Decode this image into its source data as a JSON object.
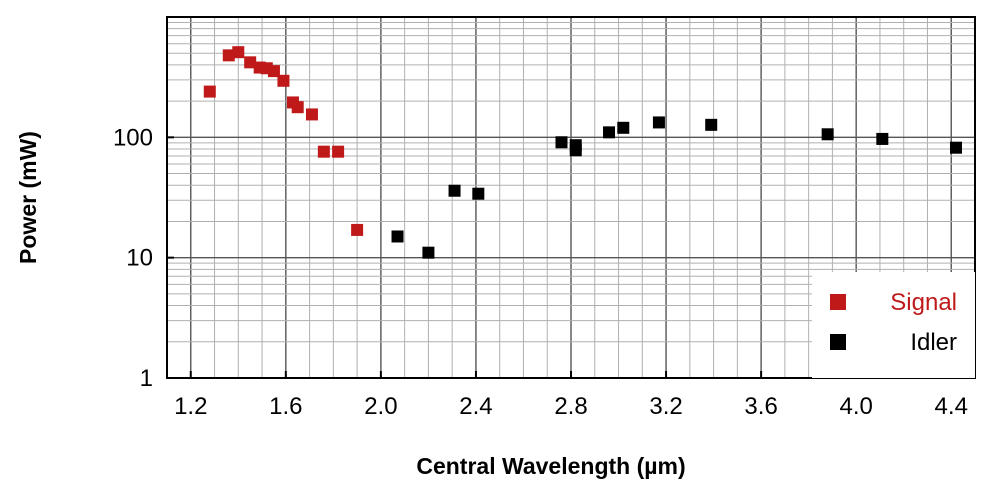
{
  "chart_data": {
    "type": "scatter",
    "xlabel": "Central Wavelength (µm)",
    "ylabel": "Power (mW)",
    "xlim": [
      1.1,
      4.5
    ],
    "ylim": [
      1,
      1000
    ],
    "y_scale": "log",
    "x_ticks": [
      "1.2",
      "1.6",
      "2.0",
      "2.4",
      "2.8",
      "3.2",
      "3.6",
      "4.0",
      "4.4"
    ],
    "y_ticks": [
      "1",
      "10",
      "100"
    ],
    "grid": true,
    "legend_position": "bottom-right",
    "series": [
      {
        "name": "Signal",
        "color": "#c0191a",
        "marker": "square",
        "x": [
          1.28,
          1.36,
          1.4,
          1.45,
          1.49,
          1.52,
          1.55,
          1.59,
          1.63,
          1.65,
          1.71,
          1.76,
          1.82,
          1.9
        ],
        "y": [
          240,
          480,
          510,
          420,
          380,
          375,
          355,
          295,
          195,
          178,
          155,
          76,
          76,
          17
        ]
      },
      {
        "name": "Idler",
        "color": "#000000",
        "marker": "square",
        "x": [
          2.07,
          2.2,
          2.31,
          2.41,
          2.76,
          2.82,
          2.82,
          2.96,
          3.02,
          3.17,
          3.39,
          3.88,
          4.11,
          4.42
        ],
        "y": [
          15,
          11,
          36,
          34,
          91,
          86,
          78,
          110,
          120,
          133,
          127,
          106,
          97,
          82
        ]
      }
    ]
  }
}
